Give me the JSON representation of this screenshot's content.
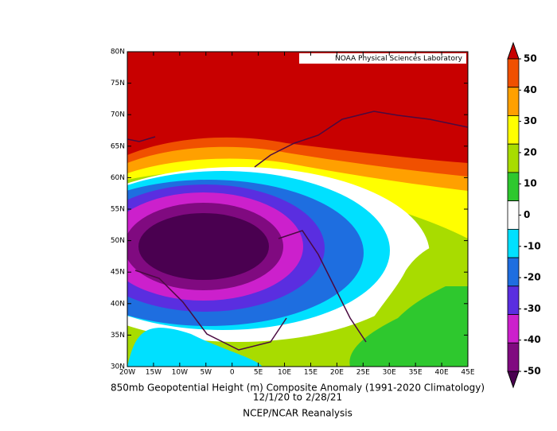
{
  "banner": "NOAA Physical Sciences Laboratory",
  "latitude_labels": [
    "80N",
    "75N",
    "70N",
    "65N",
    "60N",
    "55N",
    "50N",
    "45N",
    "40N",
    "35N",
    "30N"
  ],
  "longitude_labels": [
    "20W",
    "15W",
    "10W",
    "5W",
    "0",
    "5E",
    "10E",
    "15E",
    "20E",
    "25E",
    "30E",
    "35E",
    "40E",
    "45E"
  ],
  "colorbar": {
    "ticks": [
      50,
      40,
      30,
      20,
      10,
      0,
      -10,
      -20,
      -30,
      -40,
      -50
    ],
    "colors": [
      "#c80000",
      "#f05000",
      "#ffa000",
      "#ffff00",
      "#a8dc00",
      "#2ec82e",
      "#ffffff",
      "#00e0ff",
      "#1e6ee0",
      "#5a2ee0",
      "#cc20cc",
      "#800a80",
      "#4a0050"
    ]
  },
  "title": [
    "850mb Geopotential Height (m) Composite Anomaly (1991-2020 Climatology)",
    "12/1/20  to 2/28/21",
    "NCEP/NCAR Reanalysis"
  ]
}
